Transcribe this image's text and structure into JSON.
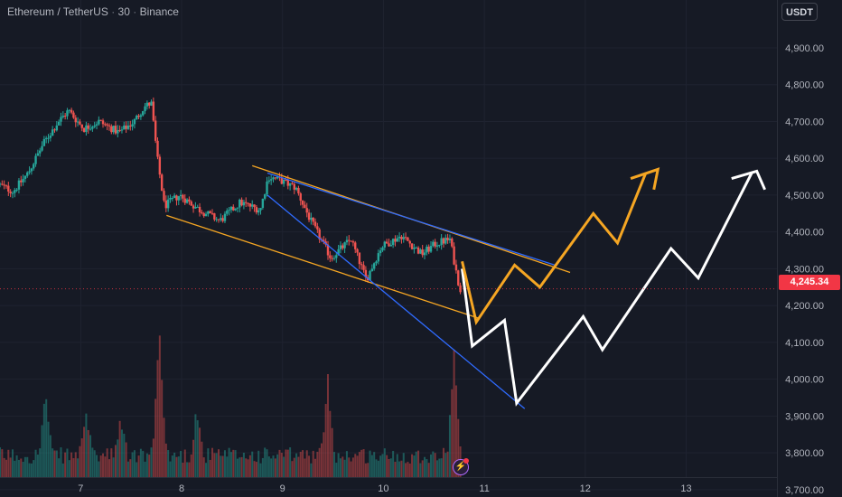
{
  "header": {
    "symbol": "Ethereum / TetherUS",
    "interval": "30",
    "exchange": "Binance",
    "separator": "·",
    "currency": "USDT"
  },
  "last_price_label": "4,245.34",
  "colors": {
    "background": "#161a25",
    "up": "#26a69a",
    "down": "#ef5350",
    "channel_orange": "#f5a623",
    "wedge_blue": "#2f6bff",
    "projection_white": "#ffffff",
    "price_tag": "#f23645"
  },
  "icons": {
    "flash": "lightning-icon"
  },
  "chart_data": {
    "type": "candlestick",
    "y_axis": {
      "min": 3680,
      "max": 5030,
      "ticks": [
        3700,
        3800,
        3900,
        4000,
        4100,
        4200,
        4300,
        4400,
        4500,
        4600,
        4700,
        4800,
        4900
      ],
      "tick_labels": [
        "3,700.00",
        "3,800.00",
        "3,900.00",
        "4,000.00",
        "4,100.00",
        "4,200.00",
        "4,300.00",
        "4,400.00",
        "4,500.00",
        "4,600.00",
        "4,700.00",
        "4,800.00",
        "4,900.00"
      ],
      "position": "right"
    },
    "x_axis": {
      "min": 6.2,
      "max": 13.9,
      "ticks": [
        7,
        8,
        9,
        10,
        11,
        12,
        13
      ],
      "tick_labels": [
        "7",
        "8",
        "9",
        "10",
        "11",
        "12",
        "13"
      ]
    },
    "last_price": 4245.34,
    "price_path": [
      [
        6.2,
        4530
      ],
      [
        6.35,
        4510
      ],
      [
        6.5,
        4560
      ],
      [
        6.65,
        4640
      ],
      [
        6.8,
        4700
      ],
      [
        6.9,
        4730
      ],
      [
        7.05,
        4680
      ],
      [
        7.2,
        4700
      ],
      [
        7.4,
        4670
      ],
      [
        7.55,
        4700
      ],
      [
        7.65,
        4740
      ],
      [
        7.72,
        4750
      ],
      [
        7.78,
        4600
      ],
      [
        7.85,
        4470
      ],
      [
        8.0,
        4500
      ],
      [
        8.2,
        4460
      ],
      [
        8.4,
        4430
      ],
      [
        8.6,
        4480
      ],
      [
        8.8,
        4460
      ],
      [
        8.88,
        4550
      ],
      [
        9.0,
        4540
      ],
      [
        9.15,
        4520
      ],
      [
        9.3,
        4430
      ],
      [
        9.5,
        4330
      ],
      [
        9.7,
        4380
      ],
      [
        9.85,
        4270
      ],
      [
        10.0,
        4360
      ],
      [
        10.2,
        4390
      ],
      [
        10.4,
        4340
      ],
      [
        10.55,
        4370
      ],
      [
        10.68,
        4380
      ],
      [
        10.75,
        4280
      ],
      [
        10.78,
        4245
      ]
    ],
    "volume": {
      "baseline": 0.1,
      "spikes": [
        [
          6.65,
          0.55
        ],
        [
          7.05,
          0.45
        ],
        [
          7.4,
          0.38
        ],
        [
          7.78,
          1.0
        ],
        [
          8.15,
          0.45
        ],
        [
          9.45,
          0.65
        ],
        [
          10.7,
          0.85
        ]
      ]
    },
    "drawings": {
      "orange_channel_upper": [
        [
          8.7,
          4580
        ],
        [
          11.85,
          4290
        ]
      ],
      "orange_channel_lower": [
        [
          7.85,
          4445
        ],
        [
          10.95,
          4165
        ]
      ],
      "blue_wedge_upper": [
        [
          8.85,
          4560
        ],
        [
          11.7,
          4310
        ]
      ],
      "blue_wedge_lower": [
        [
          8.85,
          4500
        ],
        [
          11.4,
          3920
        ]
      ],
      "orange_projection": [
        [
          10.78,
          4320
        ],
        [
          10.92,
          4155
        ],
        [
          11.3,
          4310
        ],
        [
          11.55,
          4250
        ],
        [
          12.08,
          4450
        ],
        [
          12.32,
          4370
        ],
        [
          12.6,
          4560
        ]
      ],
      "orange_arrowhead": [
        [
          12.45,
          4545
        ],
        [
          12.72,
          4570
        ],
        [
          12.68,
          4515
        ]
      ],
      "white_projection": [
        [
          10.78,
          4300
        ],
        [
          10.88,
          4090
        ],
        [
          11.2,
          4160
        ],
        [
          11.32,
          3935
        ],
        [
          11.98,
          4170
        ],
        [
          12.17,
          4080
        ],
        [
          12.85,
          4355
        ],
        [
          13.12,
          4275
        ],
        [
          13.65,
          4560
        ]
      ],
      "white_arrowhead": [
        [
          13.45,
          4545
        ],
        [
          13.7,
          4565
        ],
        [
          13.78,
          4515
        ]
      ]
    }
  }
}
